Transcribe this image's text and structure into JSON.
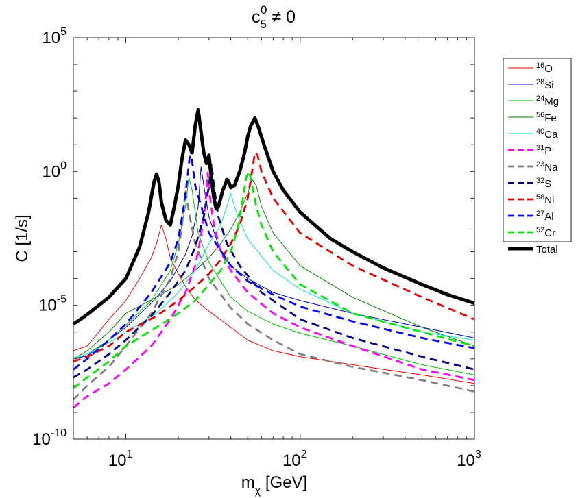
{
  "chart_data": {
    "type": "line",
    "title": {
      "main": "c",
      "sup": "0",
      "sub": "5",
      "rest": " ≠ 0"
    },
    "xlabel": {
      "main": "m",
      "sub": "χ",
      "rest": " [GeV]"
    },
    "ylabel": "C [1/s]",
    "xscale": "log",
    "yscale": "log",
    "xlim": [
      5,
      1000
    ],
    "ylim": [
      1e-10,
      100000
    ],
    "x_ticks": [
      {
        "value": 10,
        "base": "10",
        "exp": "1"
      },
      {
        "value": 100,
        "base": "10",
        "exp": "2"
      },
      {
        "value": 1000,
        "base": "10",
        "exp": "3"
      }
    ],
    "y_ticks": [
      {
        "value": 1e-10,
        "base": "10",
        "exp": "-10"
      },
      {
        "value": 1e-05,
        "base": "10",
        "exp": "-5"
      },
      {
        "value": 1,
        "base": "10",
        "exp": "0"
      },
      {
        "value": 100000,
        "base": "10",
        "exp": "5"
      }
    ],
    "legend_position": "outside-top-right",
    "series": [
      {
        "name": "O",
        "mass": "16",
        "color": "#ff0000",
        "style": "solid",
        "width": "thin",
        "x": [
          5,
          5.5,
          6,
          7,
          8,
          10,
          12,
          14,
          15,
          16,
          17,
          18,
          20,
          22,
          25,
          30,
          40,
          50,
          70,
          100,
          200,
          500,
          1000
        ],
        "y": [
          2e-07,
          2.5e-07,
          3e-07,
          1e-06,
          3e-06,
          1.5e-05,
          0.0001,
          0.0006,
          0.002,
          0.01,
          0.003,
          0.0006,
          0.00015,
          5e-05,
          1.6e-05,
          6e-06,
          1.5e-06,
          5e-07,
          2e-07,
          1.2e-07,
          6e-08,
          2.5e-08,
          1.2e-08
        ]
      },
      {
        "name": "Si",
        "mass": "28",
        "color": "#0000cd",
        "style": "solid",
        "width": "thin",
        "x": [
          5,
          6,
          8,
          10,
          14,
          18,
          22,
          24,
          26,
          27,
          28,
          30,
          35,
          40,
          50,
          70,
          100,
          200,
          500,
          1000
        ],
        "y": [
          1e-07,
          1.3e-07,
          5e-07,
          1.5e-06,
          1.2e-05,
          8e-05,
          0.0008,
          0.004,
          0.05,
          1.5,
          0.3,
          0.02,
          0.001,
          0.0003,
          0.0001,
          3e-05,
          1.5e-05,
          5e-06,
          1.5e-06,
          6e-07
        ]
      },
      {
        "name": "Mg",
        "mass": "24",
        "color": "#00c000",
        "style": "solid",
        "width": "thin",
        "x": [
          5,
          6,
          8,
          10,
          14,
          18,
          20,
          22,
          23,
          24,
          26,
          30,
          40,
          50,
          70,
          100,
          200,
          500,
          1000
        ],
        "y": [
          1e-07,
          1.5e-07,
          5e-07,
          1.8e-06,
          1.5e-05,
          0.0002,
          0.002,
          0.05,
          0.6,
          0.2,
          0.005,
          0.0004,
          2e-05,
          6e-06,
          2e-06,
          9e-07,
          3e-07,
          6e-08,
          2.5e-08
        ]
      },
      {
        "name": "Fe",
        "mass": "56",
        "color": "#008000",
        "style": "solid",
        "width": "thin",
        "x": [
          5,
          6,
          8,
          10,
          15,
          20,
          25,
          30,
          35,
          40,
          45,
          50,
          53,
          56,
          60,
          70,
          100,
          200,
          500,
          1000
        ],
        "y": [
          1e-07,
          2e-07,
          1e-06,
          5e-06,
          2e-05,
          6e-05,
          0.0002,
          0.0006,
          0.002,
          0.007,
          0.03,
          0.15,
          0.5,
          0.3,
          0.05,
          0.005,
          0.0003,
          2e-05,
          1.5e-06,
          3e-07
        ]
      },
      {
        "name": "Ca",
        "mass": "40",
        "color": "#00e5e5",
        "style": "solid",
        "width": "thin",
        "x": [
          5,
          6,
          8,
          10,
          15,
          20,
          25,
          30,
          35,
          38,
          40,
          42,
          45,
          50,
          70,
          100,
          200,
          500,
          1000
        ],
        "y": [
          1e-07,
          1.5e-07,
          4e-07,
          1e-06,
          5e-06,
          3e-05,
          0.0002,
          0.002,
          0.01,
          0.05,
          0.15,
          0.05,
          0.015,
          0.003,
          0.0002,
          4e-05,
          5e-06,
          1e-06,
          5e-07
        ]
      },
      {
        "name": "P",
        "mass": "31",
        "color": "#ff00ff",
        "style": "dashed",
        "width": "medium",
        "x": [
          5,
          6,
          8,
          10,
          14,
          18,
          22,
          25,
          27,
          28.5,
          29.5,
          30,
          32,
          35,
          40,
          50,
          70,
          100,
          200,
          500,
          1000
        ],
        "y": [
          1.5e-09,
          4e-09,
          1.2e-08,
          4e-08,
          3e-07,
          3e-06,
          3e-05,
          0.0003,
          0.004,
          0.05,
          0.9,
          0.2,
          0.01,
          0.001,
          0.0002,
          3e-05,
          5e-06,
          1.5e-06,
          3e-07,
          4e-08,
          1.6e-08
        ]
      },
      {
        "name": "Na",
        "mass": "23",
        "color": "#808080",
        "style": "dashed",
        "width": "medium",
        "x": [
          5,
          6,
          8,
          10,
          14,
          18,
          20,
          21,
          22,
          23,
          25,
          30,
          40,
          50,
          70,
          100,
          200,
          500,
          1000
        ],
        "y": [
          3e-09,
          1e-08,
          5e-08,
          3e-07,
          5e-06,
          0.0001,
          0.001,
          0.01,
          0.2,
          0.03,
          0.002,
          0.0001,
          8e-06,
          2e-06,
          5e-07,
          1.5e-07,
          5e-08,
          1.6e-08,
          6e-09
        ]
      },
      {
        "name": "S",
        "mass": "32",
        "color": "#000080",
        "style": "dashed",
        "width": "medium",
        "x": [
          5,
          6,
          8,
          10,
          14,
          18,
          22,
          25,
          28,
          30,
          31,
          32,
          34,
          38,
          45,
          60,
          100,
          200,
          500,
          1000
        ],
        "y": [
          2e-08,
          4e-08,
          1.5e-07,
          5e-07,
          4e-06,
          3e-05,
          0.0002,
          0.0015,
          0.02,
          0.3,
          2,
          0.3,
          0.02,
          0.002,
          0.0003,
          3e-05,
          3e-06,
          6e-07,
          1.2e-07,
          4e-08
        ]
      },
      {
        "name": "Ni",
        "mass": "58",
        "color": "#e60000",
        "style": "dashed",
        "width": "medium",
        "x": [
          5,
          6,
          8,
          10,
          15,
          20,
          25,
          30,
          35,
          40,
          45,
          50,
          53,
          55,
          57,
          60,
          70,
          100,
          200,
          500,
          1000
        ],
        "y": [
          8e-08,
          1.2e-07,
          3e-07,
          1e-06,
          4e-06,
          1.5e-05,
          5e-05,
          0.00015,
          0.0005,
          0.002,
          0.01,
          0.1,
          1,
          5,
          4,
          1,
          0.1,
          0.005,
          0.0003,
          2e-05,
          3e-06
        ]
      },
      {
        "name": "Al",
        "mass": "27",
        "color": "#0000ff",
        "style": "dashed",
        "width": "medium",
        "x": [
          5,
          6,
          8,
          10,
          14,
          18,
          20,
          21.5,
          22.5,
          23.5,
          25,
          30,
          40,
          50,
          70,
          100,
          200,
          500,
          1000
        ],
        "y": [
          4e-08,
          1e-07,
          5e-07,
          2e-06,
          3e-05,
          0.0004,
          0.003,
          0.05,
          0.5,
          7,
          0.3,
          0.005,
          0.0003,
          8e-05,
          2.5e-05,
          9e-06,
          2.5e-06,
          6e-07,
          2.5e-07
        ]
      },
      {
        "name": "Cr",
        "mass": "52",
        "color": "#00e600",
        "style": "dashed",
        "width": "medium",
        "x": [
          5,
          6,
          8,
          10,
          15,
          20,
          25,
          30,
          35,
          40,
          44,
          47,
          49,
          51,
          53,
          56,
          60,
          70,
          100,
          200,
          500,
          1000
        ],
        "y": [
          8e-09,
          2e-08,
          8e-08,
          3e-07,
          1.5e-06,
          5e-06,
          1.5e-05,
          6e-05,
          0.0002,
          0.001,
          0.008,
          0.1,
          0.6,
          1,
          0.3,
          0.05,
          0.01,
          0.001,
          6e-05,
          5e-06,
          1e-06,
          3e-07
        ]
      },
      {
        "name": "Total",
        "mass": "",
        "color": "#000000",
        "style": "solid",
        "width": "thick",
        "x": [
          5,
          5.5,
          6,
          7,
          8,
          10,
          12,
          13.5,
          14.5,
          15,
          15.5,
          16,
          17,
          18,
          19,
          20,
          21,
          22,
          23,
          24,
          25,
          26,
          27,
          28,
          29,
          30,
          31,
          32,
          33,
          34,
          35,
          36,
          37,
          38,
          39,
          40,
          42,
          45,
          48,
          50,
          52,
          55,
          58,
          62,
          70,
          80,
          100,
          150,
          200,
          300,
          500,
          700,
          1000
        ],
        "y": [
          2e-06,
          3e-06,
          4.5e-06,
          1e-05,
          2e-05,
          0.0001,
          0.0015,
          0.03,
          0.4,
          0.8,
          0.4,
          0.07,
          0.015,
          0.01,
          0.05,
          0.3,
          3,
          15,
          10,
          5,
          50,
          200,
          30,
          5,
          2,
          4,
          0.5,
          0.1,
          0.04,
          0.05,
          0.1,
          0.2,
          0.3,
          0.5,
          0.4,
          0.25,
          0.3,
          1,
          5,
          20,
          50,
          100,
          40,
          10,
          1,
          0.2,
          0.03,
          0.003,
          0.001,
          0.00025,
          6e-05,
          2.5e-05,
          1.2e-05
        ]
      }
    ]
  }
}
